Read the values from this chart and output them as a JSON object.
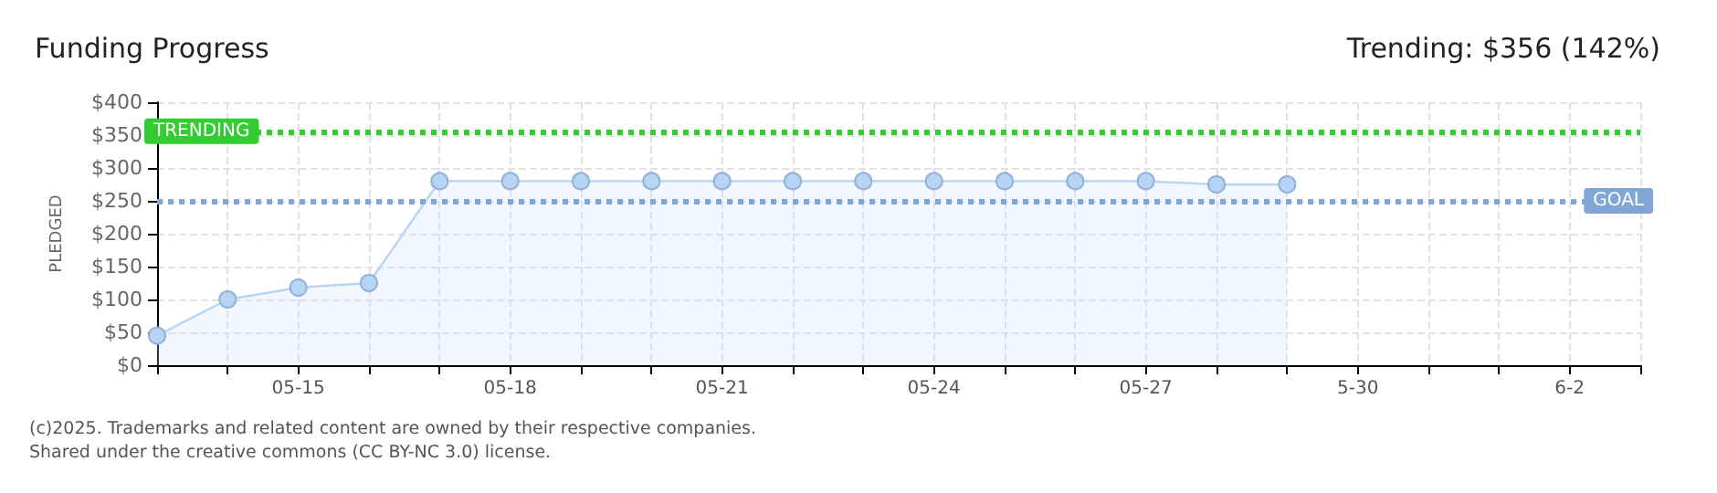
{
  "chart_data": {
    "type": "area",
    "title": "Funding Progress",
    "subtitle": "Trending: $356 (142%)",
    "ylabel": "PLEDGED",
    "x": [
      "--05-13",
      "--05-14",
      "--05-15",
      "--05-16",
      "--05-17",
      "--05-18",
      "--05-19",
      "--05-20",
      "--05-21",
      "--05-22",
      "--05-23",
      "--05-24",
      "--05-25",
      "--05-26",
      "--05-27",
      "--05-28",
      "--05-29"
    ],
    "series": [
      {
        "color": "#b8d4f4",
        "values": [
          45,
          100,
          118,
          125,
          280,
          280,
          280,
          280,
          280,
          280,
          280,
          280,
          280,
          280,
          280,
          275,
          275
        ]
      }
    ],
    "xlim": [
      "--05-13",
      "--06-03"
    ],
    "xticks": [
      {
        "value": "--05-13",
        "label": null
      },
      {
        "value": "--05-14",
        "label": null
      },
      {
        "value": "--05-15",
        "label": "05-15"
      },
      {
        "value": "--05-16",
        "label": null
      },
      {
        "value": "--05-17",
        "label": null
      },
      {
        "value": "--05-18",
        "label": "05-18"
      },
      {
        "value": "--05-19",
        "label": null
      },
      {
        "value": "--05-20",
        "label": null
      },
      {
        "value": "--05-21",
        "label": "05-21"
      },
      {
        "value": "--05-22",
        "label": null
      },
      {
        "value": "--05-23",
        "label": null
      },
      {
        "value": "--05-24",
        "label": "05-24"
      },
      {
        "value": "--05-25",
        "label": null
      },
      {
        "value": "--05-26",
        "label": null
      },
      {
        "value": "--05-27",
        "label": "05-27"
      },
      {
        "value": "--05-28",
        "label": null
      },
      {
        "value": "--05-29",
        "label": null
      },
      {
        "value": "--05-30",
        "label": "5-30"
      },
      {
        "value": "--05-31",
        "label": null
      },
      {
        "value": "--06-01",
        "label": null
      },
      {
        "value": "--06-02",
        "label": "6-2"
      },
      {
        "value": "--06-03",
        "label": null
      }
    ],
    "ylim": [
      0,
      400
    ],
    "yticks": [
      {
        "value": 0,
        "label": "$0"
      },
      {
        "value": 50,
        "label": "$50"
      },
      {
        "value": 100,
        "label": "$100"
      },
      {
        "value": 150,
        "label": "$150"
      },
      {
        "value": 200,
        "label": "$200"
      },
      {
        "value": 250,
        "label": "$250"
      },
      {
        "value": 300,
        "label": "$300"
      },
      {
        "value": 350,
        "label": "$350"
      },
      {
        "value": 400,
        "label": "$400"
      }
    ],
    "ref_lines": [
      {
        "axis": "y",
        "value": 356,
        "label": "TRENDING",
        "color": "#33cc33",
        "line_style": "dotted"
      },
      {
        "axis": "y",
        "value": 250,
        "label": "GOAL",
        "color": "#7fa6d6",
        "line_style": "dotted"
      }
    ],
    "annotations": [
      "(c)2025. Trademarks and related content are owned by their respective companies.",
      "Shared under the creative commons (CC BY-NC 3.0) license."
    ],
    "grid": true,
    "marker": "circle"
  }
}
